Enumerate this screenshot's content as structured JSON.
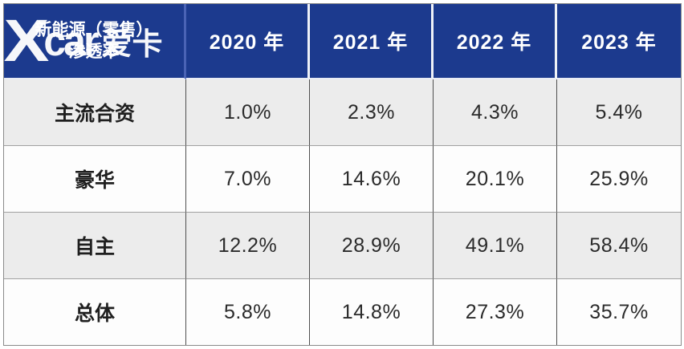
{
  "table": {
    "header": {
      "label_line1": "新能源（零售）",
      "label_line2": "渗透率",
      "years": [
        "2020 年",
        "2021 年",
        "2022 年",
        "2023 年"
      ]
    },
    "rows": [
      {
        "label": "主流合资",
        "values": [
          "1.0%",
          "2.3%",
          "4.3%",
          "5.4%"
        ]
      },
      {
        "label": "豪华",
        "values": [
          "7.0%",
          "14.6%",
          "20.1%",
          "25.9%"
        ]
      },
      {
        "label": "自主",
        "values": [
          "12.2%",
          "28.9%",
          "49.1%",
          "58.4%"
        ]
      },
      {
        "label": "总体",
        "values": [
          "5.8%",
          "14.8%",
          "27.3%",
          "35.7%"
        ]
      }
    ]
  },
  "watermark": {
    "x": "X",
    "car": "car",
    "cn": "爱卡"
  },
  "colors": {
    "header_bg": "#1c3a8e",
    "row_gray": "#ececec",
    "row_white": "#fdfdfd",
    "header_text": "#ffffff",
    "body_text": "#2b2b2b"
  },
  "chart_data": {
    "type": "table",
    "title": "新能源（零售）渗透率",
    "columns": [
      "新能源（零售）渗透率",
      "2020 年",
      "2021 年",
      "2022 年",
      "2023 年"
    ],
    "categories": [
      "2020",
      "2021",
      "2022",
      "2023"
    ],
    "unit": "%",
    "series": [
      {
        "name": "主流合资",
        "values": [
          1.0,
          2.3,
          4.3,
          5.4
        ]
      },
      {
        "name": "豪华",
        "values": [
          7.0,
          14.6,
          20.1,
          25.9
        ]
      },
      {
        "name": "自主",
        "values": [
          12.2,
          28.9,
          49.1,
          58.4
        ]
      },
      {
        "name": "总体",
        "values": [
          5.8,
          14.8,
          27.3,
          35.7
        ]
      }
    ],
    "legend_position": "none",
    "grid": true
  }
}
